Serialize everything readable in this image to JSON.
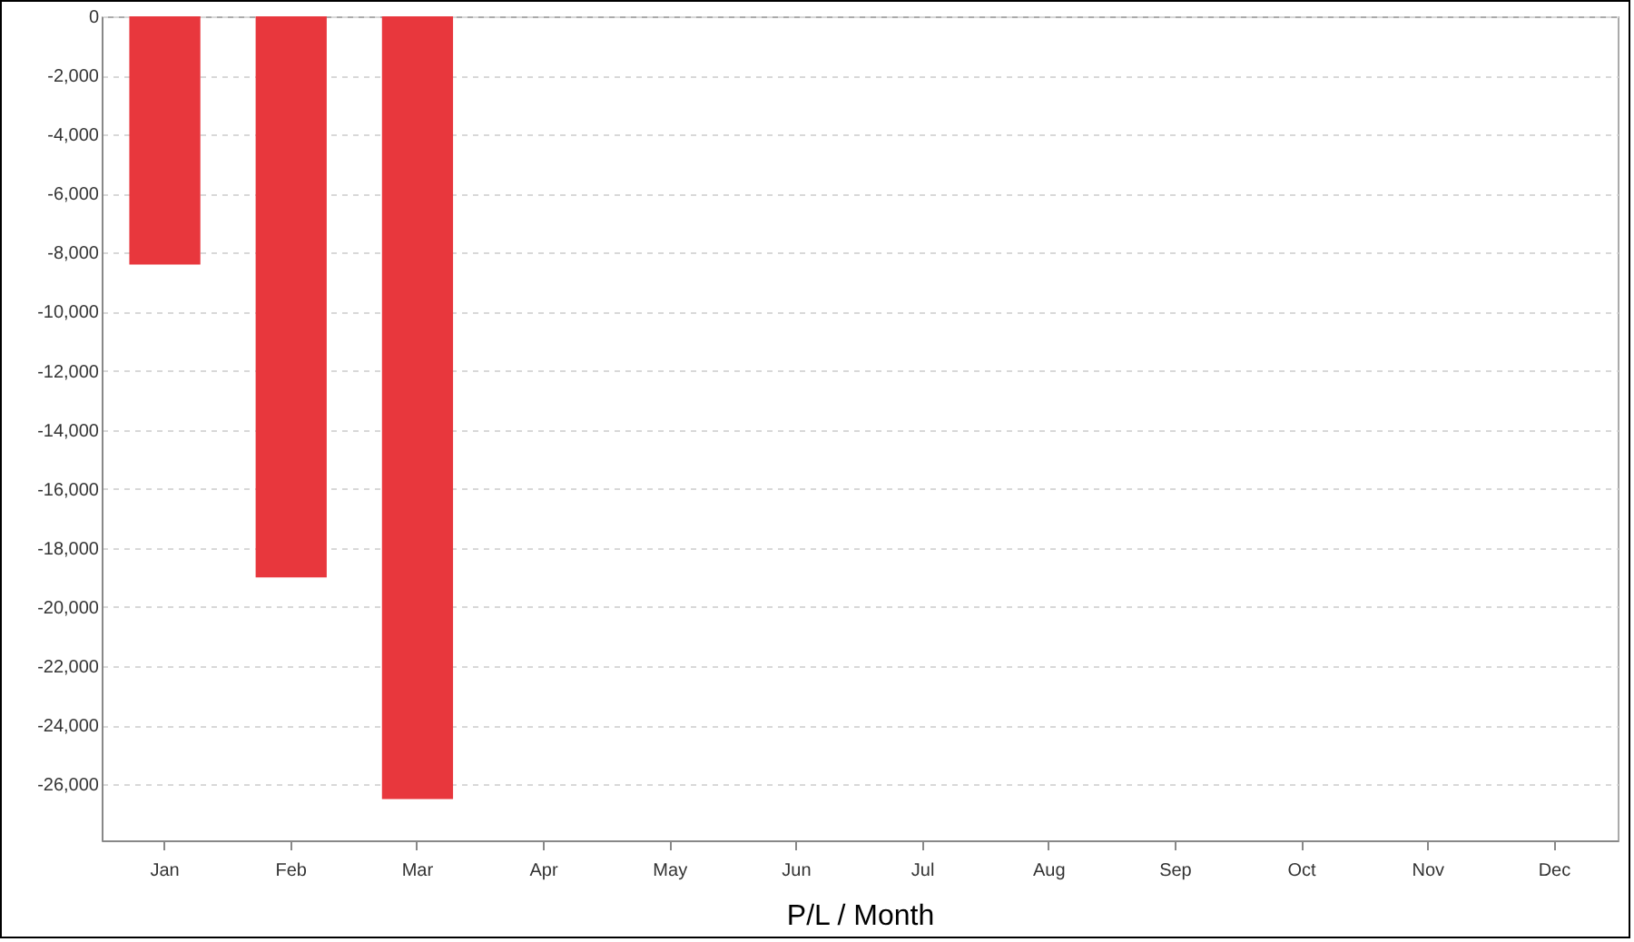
{
  "chart_data": {
    "type": "bar",
    "xlabel": "P/L / Month",
    "categories": [
      "Jan",
      "Feb",
      "Mar",
      "Apr",
      "May",
      "Jun",
      "Jul",
      "Aug",
      "Sep",
      "Oct",
      "Nov",
      "Dec"
    ],
    "values": [
      -8400,
      -19000,
      -26500,
      null,
      null,
      null,
      null,
      null,
      null,
      null,
      null,
      null
    ],
    "color": "#e8373d",
    "ylim": [
      -27900,
      0
    ],
    "yticks": [
      {
        "value": 0,
        "label": "0"
      },
      {
        "value": -2000,
        "label": "-2,000"
      },
      {
        "value": -4000,
        "label": "-4,000"
      },
      {
        "value": -6000,
        "label": "-6,000"
      },
      {
        "value": -8000,
        "label": "-8,000"
      },
      {
        "value": -10000,
        "label": "-10,000"
      },
      {
        "value": -12000,
        "label": "-12,000"
      },
      {
        "value": -14000,
        "label": "-14,000"
      },
      {
        "value": -16000,
        "label": "-16,000"
      },
      {
        "value": -18000,
        "label": "-18,000"
      },
      {
        "value": -20000,
        "label": "-20,000"
      },
      {
        "value": -22000,
        "label": "-22,000"
      },
      {
        "value": -24000,
        "label": "-24,000"
      },
      {
        "value": -26000,
        "label": "-26,000"
      }
    ],
    "grid": "y"
  }
}
